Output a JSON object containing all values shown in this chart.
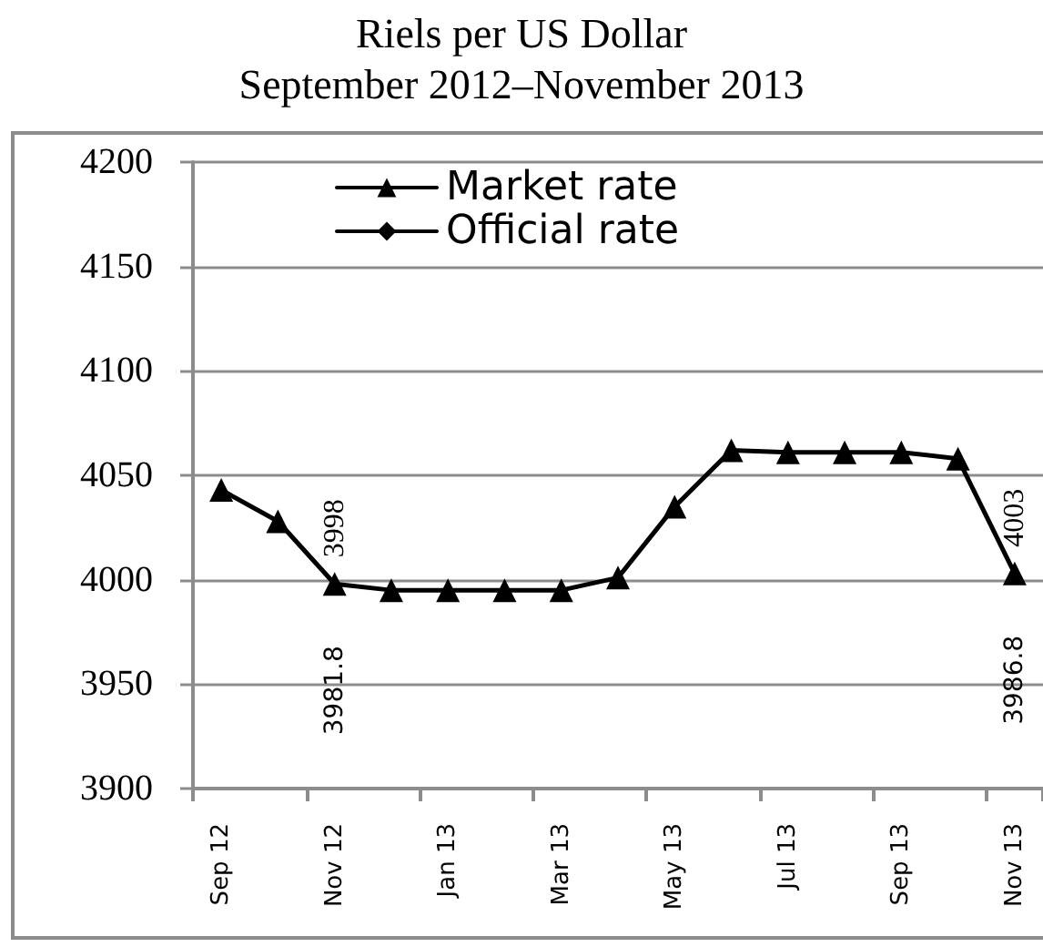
{
  "chart_data": {
    "type": "line",
    "title": "Riels per US Dollar",
    "subtitle": "September 2012–November 2013",
    "categories": [
      "Sep 12",
      null,
      "Nov 12",
      null,
      "Jan 13",
      null,
      "Mar 13",
      null,
      "May 13",
      null,
      "Jul 13",
      null,
      "Sep 13",
      null,
      "Nov 13"
    ],
    "series": [
      {
        "name": "Market rate",
        "color": "#000000",
        "marker": "triangle",
        "values": [
          4043,
          4028,
          3998,
          3995,
          3995,
          3995,
          3995,
          4001,
          4035,
          4062,
          4061,
          4061,
          4061,
          4058,
          4003
        ],
        "value_labels": [
          null,
          null,
          "3998",
          null,
          null,
          null,
          null,
          null,
          null,
          null,
          null,
          null,
          null,
          null,
          "4003"
        ]
      },
      {
        "name": "Official rate",
        "color": "#000000",
        "marker": "diamond",
        "values": [
          null,
          null,
          null,
          null,
          null,
          null,
          null,
          null,
          null,
          null,
          null,
          null,
          null,
          null,
          null
        ]
      }
    ],
    "annotations": [
      "3981.8",
      "3986.8"
    ],
    "ylim": [
      3900,
      4200
    ],
    "yticks": [
      3900,
      3950,
      4000,
      4050,
      4100,
      4150,
      4200
    ],
    "grid": "y",
    "legend": "top left",
    "line_style": "solid"
  }
}
